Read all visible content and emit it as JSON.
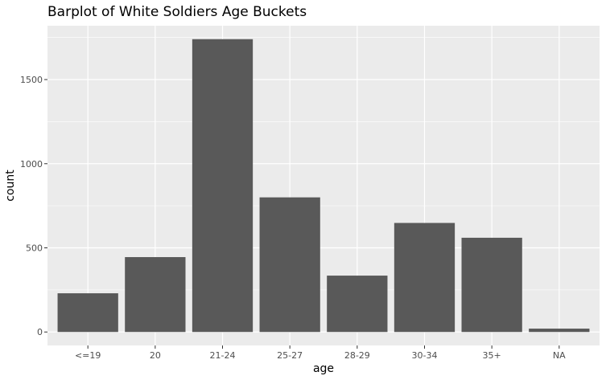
{
  "chart_data": {
    "type": "bar",
    "title": "Barplot of White Soldiers Age Buckets",
    "xlabel": "age",
    "ylabel": "count",
    "categories": [
      "<=19",
      "20",
      "21-24",
      "25-27",
      "28-29",
      "30-34",
      "35+",
      "NA"
    ],
    "values": [
      230,
      445,
      1740,
      800,
      335,
      648,
      560,
      20
    ],
    "ylim": [
      -80,
      1820
    ],
    "yticks": [
      0,
      500,
      1000,
      1500
    ],
    "ytick_labels": [
      "0",
      "500",
      "1000",
      "1500"
    ],
    "grid": true,
    "bar_color": "#595959",
    "panel_color": "#ebebeb",
    "grid_color": "#ffffff"
  }
}
